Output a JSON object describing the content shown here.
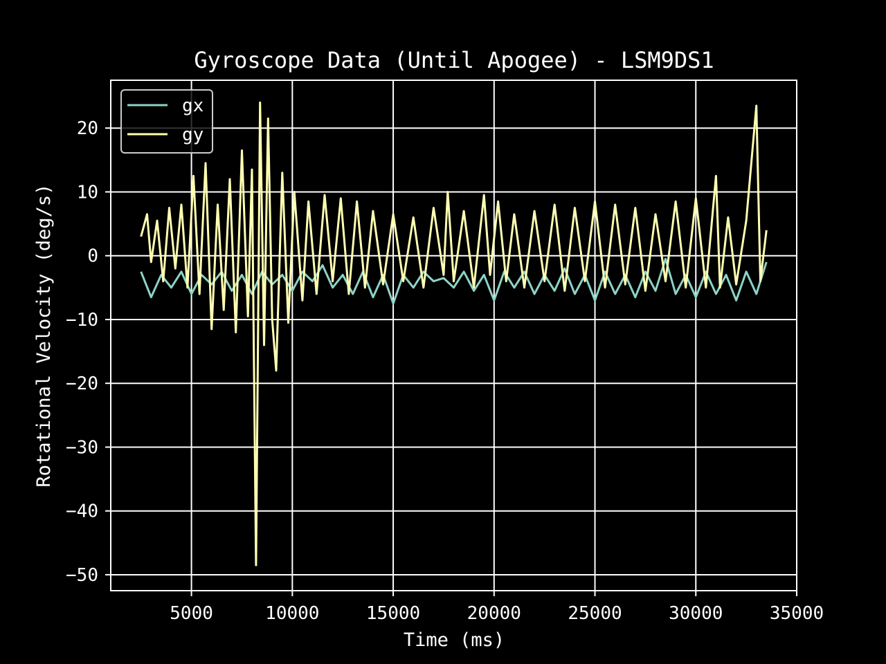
{
  "chart_data": {
    "type": "line",
    "title": "Gyroscope Data (Until Apogee) - LSM9DS1",
    "xlabel": "Time (ms)",
    "ylabel": "Rotational Velocity (deg/s)",
    "xlim": [
      1000,
      35000
    ],
    "ylim": [
      -52.5,
      27.5
    ],
    "x_ticks": [
      5000,
      10000,
      15000,
      20000,
      25000,
      30000,
      35000
    ],
    "y_ticks": [
      -50,
      -40,
      -30,
      -20,
      -10,
      0,
      10,
      20
    ],
    "x_tick_labels": [
      "5000",
      "10000",
      "15000",
      "20000",
      "25000",
      "30000",
      "35000"
    ],
    "y_tick_labels": [
      "−50",
      "−40",
      "−30",
      "−20",
      "−10",
      "0",
      "10",
      "20"
    ],
    "grid": true,
    "legend_position": "top-left",
    "background": "#000000",
    "foreground": "#ffffff",
    "series": [
      {
        "name": "gx",
        "color": "#8dd3c7",
        "x": [
          2500,
          3000,
          3500,
          4000,
          4500,
          5000,
          5500,
          6000,
          6500,
          7000,
          7500,
          8000,
          8500,
          9000,
          9500,
          10000,
          10500,
          11000,
          11500,
          12000,
          12500,
          13000,
          13500,
          14000,
          14500,
          15000,
          15500,
          16000,
          16500,
          17000,
          17500,
          18000,
          18500,
          19000,
          19500,
          20000,
          20500,
          21000,
          21500,
          22000,
          22500,
          23000,
          23500,
          24000,
          24500,
          25000,
          25500,
          26000,
          26500,
          27000,
          27500,
          28000,
          28500,
          29000,
          29500,
          30000,
          30500,
          31000,
          31500,
          32000,
          32500,
          33000,
          33500
        ],
        "y": [
          -2.5,
          -6.5,
          -3.0,
          -5.0,
          -2.5,
          -6.0,
          -3.0,
          -4.5,
          -2.5,
          -5.5,
          -3.0,
          -6.0,
          -2.5,
          -4.5,
          -3.0,
          -5.5,
          -2.5,
          -4.0,
          -1.5,
          -5.0,
          -3.0,
          -6.0,
          -2.5,
          -6.5,
          -3.0,
          -7.5,
          -3.0,
          -5.0,
          -2.5,
          -4.0,
          -3.5,
          -5.0,
          -2.5,
          -5.5,
          -3.0,
          -7.0,
          -2.5,
          -5.0,
          -2.5,
          -6.0,
          -3.0,
          -5.5,
          -2.0,
          -6.0,
          -3.0,
          -7.0,
          -2.5,
          -6.0,
          -3.0,
          -6.5,
          -2.5,
          -5.5,
          -0.5,
          -6.0,
          -3.0,
          -6.5,
          -2.5,
          -6.0,
          -3.0,
          -7.0,
          -2.5,
          -6.0,
          -1.0
        ]
      },
      {
        "name": "gy",
        "color": "#ffffb3",
        "x": [
          2500,
          2800,
          3000,
          3300,
          3600,
          3900,
          4200,
          4500,
          4800,
          5100,
          5400,
          5700,
          6000,
          6300,
          6600,
          6900,
          7200,
          7500,
          7800,
          8000,
          8200,
          8400,
          8600,
          8800,
          9000,
          9200,
          9500,
          9800,
          10100,
          10500,
          10800,
          11200,
          11600,
          12000,
          12400,
          12800,
          13200,
          13600,
          14000,
          14500,
          15000,
          15500,
          16000,
          16500,
          17000,
          17500,
          17700,
          18000,
          18500,
          19000,
          19500,
          19800,
          20200,
          20600,
          21000,
          21500,
          22000,
          22500,
          23000,
          23500,
          24000,
          24500,
          25000,
          25500,
          26000,
          26500,
          27000,
          27500,
          28000,
          28500,
          29000,
          29500,
          30000,
          30500,
          31000,
          31200,
          31600,
          32000,
          32500,
          33000,
          33200,
          33500
        ],
        "y": [
          3.0,
          6.5,
          -1.0,
          5.5,
          -4.0,
          7.5,
          -2.0,
          8.0,
          -5.0,
          12.5,
          -6.0,
          14.5,
          -11.5,
          8.0,
          -8.5,
          12.0,
          -12.0,
          16.5,
          -9.5,
          13.5,
          -48.5,
          24.0,
          -14.0,
          21.5,
          -10.0,
          -18.0,
          13.0,
          -10.5,
          10.0,
          -7.0,
          8.5,
          -6.0,
          9.5,
          -4.0,
          9.0,
          -6.0,
          8.5,
          -5.0,
          7.0,
          -4.5,
          6.5,
          -4.0,
          6.0,
          -5.0,
          7.5,
          -3.0,
          10.0,
          -4.0,
          7.0,
          -5.0,
          9.5,
          -3.0,
          8.5,
          -4.0,
          6.5,
          -5.0,
          7.0,
          -4.0,
          8.0,
          -5.5,
          7.5,
          -4.0,
          8.5,
          -5.0,
          8.0,
          -4.5,
          7.5,
          -5.5,
          6.5,
          -4.0,
          8.5,
          -5.0,
          9.0,
          -5.0,
          12.5,
          -5.0,
          6.0,
          -4.5,
          5.5,
          23.5,
          -4.0,
          4.0
        ]
      }
    ]
  }
}
